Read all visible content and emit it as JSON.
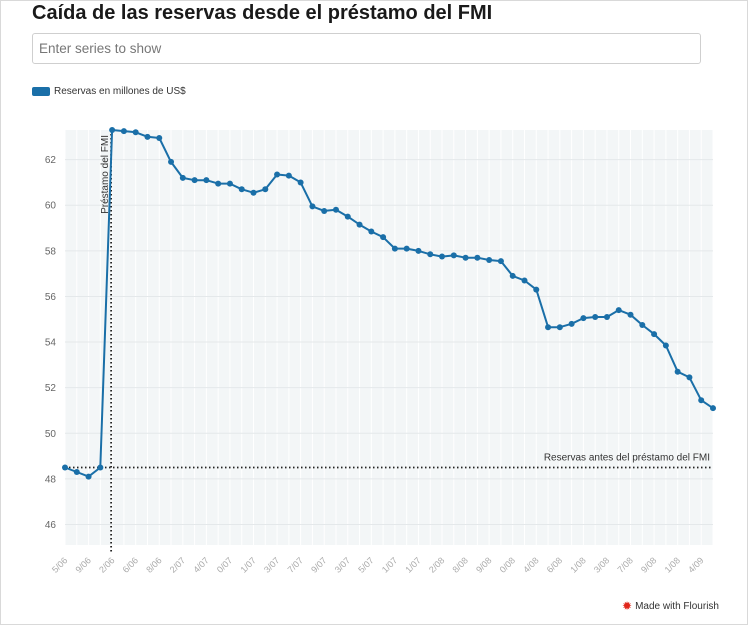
{
  "title": "Caída de las reservas desde el préstamo del FMI",
  "search": {
    "placeholder": "Enter series to show"
  },
  "legend": {
    "label": "Reservas en millones de US$",
    "color": "#1a6fa8"
  },
  "credit": {
    "label": "Made with Flourish",
    "icon": "flourish-logo-icon"
  },
  "chart_data": {
    "type": "line",
    "series": [
      {
        "name": "Reservas en millones de US$",
        "color": "#1a6fa8",
        "values": [
          48.5,
          48.3,
          48.1,
          48.5,
          63.3,
          63.25,
          63.2,
          63.0,
          62.95,
          61.9,
          61.2,
          61.1,
          61.1,
          60.95,
          60.95,
          60.7,
          60.55,
          60.7,
          61.35,
          61.3,
          61.0,
          59.95,
          59.75,
          59.8,
          59.5,
          59.15,
          58.85,
          58.6,
          58.1,
          58.1,
          58.0,
          57.85,
          57.75,
          57.8,
          57.7,
          57.7,
          57.6,
          57.55,
          56.9,
          56.7,
          56.3,
          54.65,
          54.65,
          54.8,
          55.05,
          55.1,
          55.1,
          55.4,
          55.2,
          54.75,
          54.35,
          53.85,
          52.7,
          52.45,
          51.45,
          51.1
        ]
      }
    ],
    "x_tick_labels": [
      "5/06",
      "9/06",
      "2/06",
      "6/06",
      "8/06",
      "2/07",
      "4/07",
      "0/07",
      "1/07",
      "3/07",
      "7/07",
      "9/07",
      "3/07",
      "5/07",
      "1/07",
      "1/07",
      "2/08",
      "8/08",
      "9/08",
      "0/08",
      "4/08",
      "6/08",
      "1/08",
      "3/08",
      "7/08",
      "9/08",
      "1/08",
      "4/09"
    ],
    "x_tick_every": 2,
    "y_ticks": [
      46,
      48,
      50,
      52,
      54,
      56,
      58,
      60,
      62
    ],
    "ylim": [
      45.1,
      63.3
    ],
    "grid": true,
    "annotations": [
      {
        "type": "vertical-dotted",
        "at_index": 4,
        "label": "Préstamo del FMI"
      },
      {
        "type": "horizontal-dotted",
        "y": 48.5,
        "label": "Reservas antes del préstamo del FMI"
      }
    ]
  }
}
